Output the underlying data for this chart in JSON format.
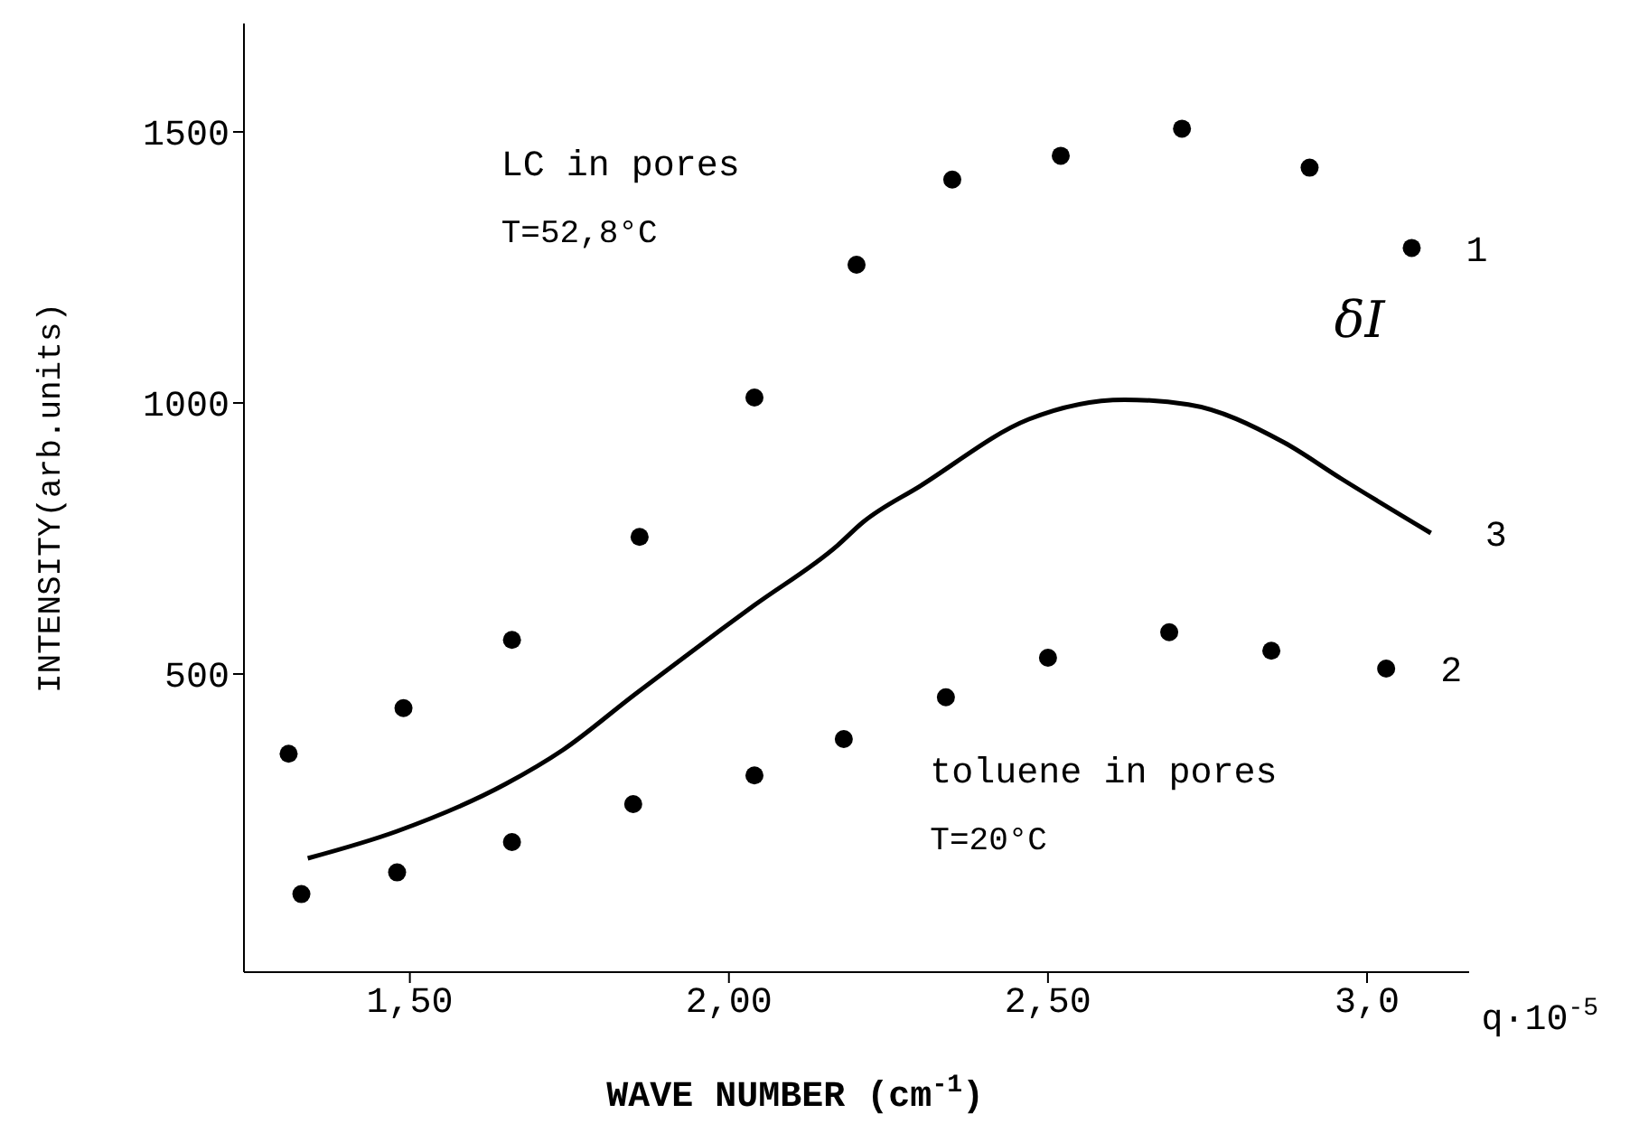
{
  "chart_data": {
    "type": "scatter",
    "xlabel": "WAVE NUMBER (cm$^{-1}$)",
    "ylabel": "INTENSITY(arb.units)",
    "xlim": [
      1.24,
      3.16
    ],
    "xticks": [
      {
        "value": 1.5,
        "label": "1,50"
      },
      {
        "value": 2.0,
        "label": "2,00"
      },
      {
        "value": 2.5,
        "label": "2,50"
      },
      {
        "value": 3.0,
        "label": "3,0"
      }
    ],
    "ylim": [
      -50,
      1700
    ],
    "yticks": [
      500,
      1000,
      1500
    ],
    "series": [
      {
        "name": "1",
        "marker": "circle",
        "color": "#000000",
        "x": [
          1.31,
          1.49,
          1.66,
          1.86,
          2.04,
          2.2,
          2.35,
          2.52,
          2.71,
          2.91,
          3.07
        ],
        "values": [
          353,
          437,
          563,
          753,
          1010,
          1255,
          1412,
          1456,
          1506,
          1434,
          1286
        ]
      },
      {
        "name": "2",
        "marker": "circle",
        "color": "#000000",
        "x": [
          1.33,
          1.48,
          1.66,
          1.85,
          2.04,
          2.18,
          2.34,
          2.5,
          2.69,
          2.85,
          3.03
        ],
        "values": [
          94,
          134,
          190,
          260,
          313,
          380,
          457,
          530,
          577,
          543,
          510
        ]
      },
      {
        "name": "3",
        "type": "line",
        "marker": "none",
        "line_style": "solid",
        "color": "#000000",
        "x": [
          1.34,
          1.48,
          1.65,
          1.74,
          1.85,
          2.04,
          2.17,
          2.21,
          2.3,
          2.47,
          2.62,
          2.72,
          2.87,
          2.96,
          3.1
        ],
        "values": [
          160,
          210,
          297,
          360,
          460,
          627,
          737,
          780,
          847,
          970,
          1006,
          997,
          927,
          860,
          760
        ]
      }
    ],
    "annotations": [
      "LC in pores",
      "T=52,8°C",
      "toluene in pores",
      "T=20°C",
      "δI",
      "q·10$^{-5}$"
    ]
  }
}
